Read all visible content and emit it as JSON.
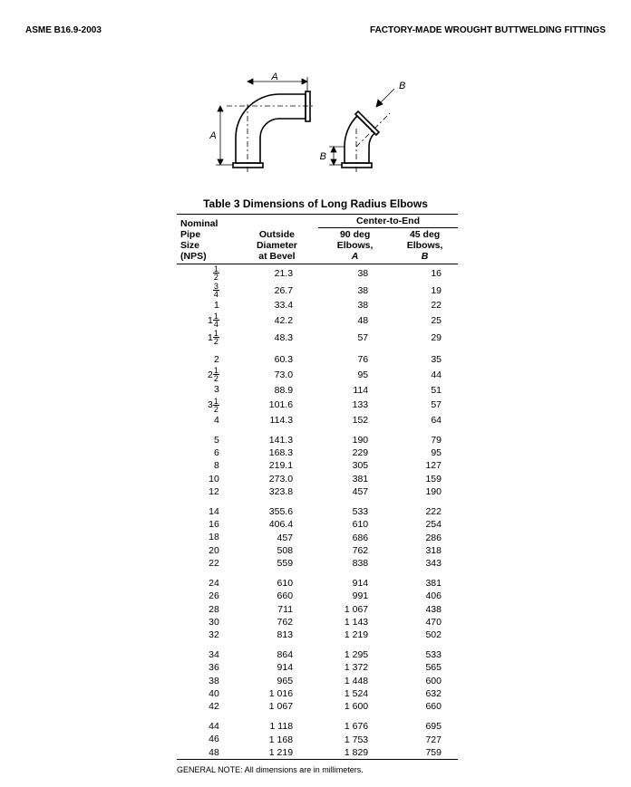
{
  "header": {
    "left": "ASME B16.9-2003",
    "right": "FACTORY-MADE WROUGHT BUTTWELDING FITTINGS"
  },
  "table": {
    "title": "Table 3   Dimensions of Long Radius Elbows",
    "col_headers": {
      "nps_l1": "Nominal",
      "nps_l2": "Pipe",
      "nps_l3": "Size",
      "nps_l4": "(NPS)",
      "od_l1": "Outside",
      "od_l2": "Diameter",
      "od_l3": "at Bevel",
      "cte": "Center-to-End",
      "a_l1": "90 deg",
      "a_l2": "Elbows,",
      "a_l3": "A",
      "b_l1": "45 deg",
      "b_l2": "Elbows,",
      "b_l3": "B"
    },
    "groups": [
      [
        {
          "nps_whole": "",
          "nps_num": "1",
          "nps_den": "2",
          "od": "21.3",
          "a": "38",
          "b": "16"
        },
        {
          "nps_whole": "",
          "nps_num": "3",
          "nps_den": "4",
          "od": "26.7",
          "a": "38",
          "b": "19"
        },
        {
          "nps_whole": "1",
          "nps_num": "",
          "nps_den": "",
          "od": "33.4",
          "a": "38",
          "b": "22"
        },
        {
          "nps_whole": "1",
          "nps_num": "1",
          "nps_den": "4",
          "od": "42.2",
          "a": "48",
          "b": "25"
        },
        {
          "nps_whole": "1",
          "nps_num": "1",
          "nps_den": "2",
          "od": "48.3",
          "a": "57",
          "b": "29"
        }
      ],
      [
        {
          "nps_whole": "2",
          "nps_num": "",
          "nps_den": "",
          "od": "60.3",
          "a": "76",
          "b": "35"
        },
        {
          "nps_whole": "2",
          "nps_num": "1",
          "nps_den": "2",
          "od": "73.0",
          "a": "95",
          "b": "44"
        },
        {
          "nps_whole": "3",
          "nps_num": "",
          "nps_den": "",
          "od": "88.9",
          "a": "114",
          "b": "51"
        },
        {
          "nps_whole": "3",
          "nps_num": "1",
          "nps_den": "2",
          "od": "101.6",
          "a": "133",
          "b": "57"
        },
        {
          "nps_whole": "4",
          "nps_num": "",
          "nps_den": "",
          "od": "114.3",
          "a": "152",
          "b": "64"
        }
      ],
      [
        {
          "nps_whole": "5",
          "nps_num": "",
          "nps_den": "",
          "od": "141.3",
          "a": "190",
          "b": "79"
        },
        {
          "nps_whole": "6",
          "nps_num": "",
          "nps_den": "",
          "od": "168.3",
          "a": "229",
          "b": "95"
        },
        {
          "nps_whole": "8",
          "nps_num": "",
          "nps_den": "",
          "od": "219.1",
          "a": "305",
          "b": "127"
        },
        {
          "nps_whole": "10",
          "nps_num": "",
          "nps_den": "",
          "od": "273.0",
          "a": "381",
          "b": "159"
        },
        {
          "nps_whole": "12",
          "nps_num": "",
          "nps_den": "",
          "od": "323.8",
          "a": "457",
          "b": "190"
        }
      ],
      [
        {
          "nps_whole": "14",
          "nps_num": "",
          "nps_den": "",
          "od": "355.6",
          "a": "533",
          "b": "222"
        },
        {
          "nps_whole": "16",
          "nps_num": "",
          "nps_den": "",
          "od": "406.4",
          "a": "610",
          "b": "254"
        },
        {
          "nps_whole": "18",
          "nps_num": "",
          "nps_den": "",
          "od": "457",
          "a": "686",
          "b": "286"
        },
        {
          "nps_whole": "20",
          "nps_num": "",
          "nps_den": "",
          "od": "508",
          "a": "762",
          "b": "318"
        },
        {
          "nps_whole": "22",
          "nps_num": "",
          "nps_den": "",
          "od": "559",
          "a": "838",
          "b": "343"
        }
      ],
      [
        {
          "nps_whole": "24",
          "nps_num": "",
          "nps_den": "",
          "od": "610",
          "a": "914",
          "b": "381"
        },
        {
          "nps_whole": "26",
          "nps_num": "",
          "nps_den": "",
          "od": "660",
          "a": "991",
          "b": "406"
        },
        {
          "nps_whole": "28",
          "nps_num": "",
          "nps_den": "",
          "od": "711",
          "a": "1 067",
          "b": "438"
        },
        {
          "nps_whole": "30",
          "nps_num": "",
          "nps_den": "",
          "od": "762",
          "a": "1 143",
          "b": "470"
        },
        {
          "nps_whole": "32",
          "nps_num": "",
          "nps_den": "",
          "od": "813",
          "a": "1 219",
          "b": "502"
        }
      ],
      [
        {
          "nps_whole": "34",
          "nps_num": "",
          "nps_den": "",
          "od": "864",
          "a": "1 295",
          "b": "533"
        },
        {
          "nps_whole": "36",
          "nps_num": "",
          "nps_den": "",
          "od": "914",
          "a": "1 372",
          "b": "565"
        },
        {
          "nps_whole": "38",
          "nps_num": "",
          "nps_den": "",
          "od": "965",
          "a": "1 448",
          "b": "600"
        },
        {
          "nps_whole": "40",
          "nps_num": "",
          "nps_den": "",
          "od": "1 016",
          "a": "1 524",
          "b": "632"
        },
        {
          "nps_whole": "42",
          "nps_num": "",
          "nps_den": "",
          "od": "1 067",
          "a": "1 600",
          "b": "660"
        }
      ],
      [
        {
          "nps_whole": "44",
          "nps_num": "",
          "nps_den": "",
          "od": "1 118",
          "a": "1 676",
          "b": "695"
        },
        {
          "nps_whole": "46",
          "nps_num": "",
          "nps_den": "",
          "od": "1 168",
          "a": "1 753",
          "b": "727"
        },
        {
          "nps_whole": "48",
          "nps_num": "",
          "nps_den": "",
          "od": "1 219",
          "a": "1 829",
          "b": "759"
        }
      ]
    ],
    "general_note": "GENERAL NOTE: All dimensions are in millimeters."
  },
  "diagram": {
    "label_A": "A",
    "label_B": "B",
    "stroke": "#000000",
    "stroke_width": 1.6,
    "thin_width": 0.8,
    "font_size": 11,
    "font_style": "italic"
  }
}
